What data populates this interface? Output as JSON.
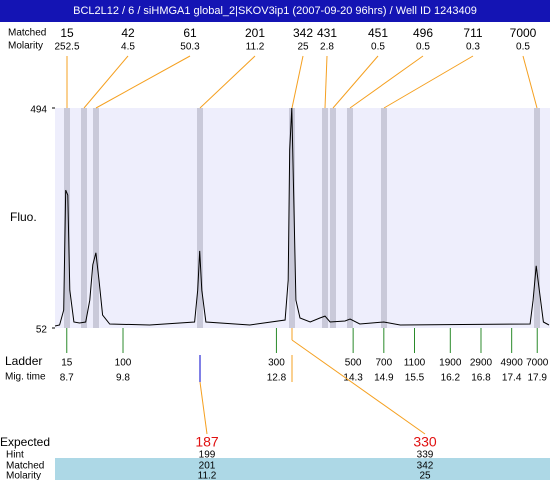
{
  "chart_data": {
    "type": "line",
    "title": "BCL2L12 / 6 / siHMGA1 global_2|SKOV3ip1 (2007-09-20 96hrs) / Well ID 1243409",
    "ylabel": "Fluo.",
    "color": "#000000",
    "xlim": [
      8.47,
      18.13
    ],
    "ylim": [
      52,
      494
    ],
    "yticks": [
      52,
      494
    ],
    "x": [
      8.47,
      8.56,
      8.64,
      8.68,
      8.72,
      8.76,
      8.84,
      8.95,
      9.07,
      9.15,
      9.21,
      9.27,
      9.33,
      9.4,
      9.54,
      10.32,
      11.2,
      11.26,
      11.3,
      11.34,
      11.42,
      12.28,
      12.97,
      13.03,
      13.06,
      13.1,
      13.14,
      13.18,
      13.26,
      13.46,
      13.65,
      13.75,
      13.85,
      14.14,
      14.24,
      14.43,
      14.9,
      15.22,
      17.76,
      17.82,
      17.88,
      17.94,
      18.02,
      18.13
    ],
    "values": [
      56,
      58,
      88,
      329,
      319,
      128,
      64,
      62,
      64,
      108,
      179,
      203,
      148,
      78,
      60,
      58,
      64,
      128,
      207,
      128,
      64,
      58,
      68,
      148,
      410,
      494,
      309,
      108,
      72,
      64,
      72,
      76,
      64,
      66,
      70,
      60,
      64,
      58,
      60,
      108,
      177,
      128,
      64,
      58
    ],
    "peaks": {
      "size_label": "Matched",
      "molarity_label": "Molarity",
      "sizes": [
        15,
        42,
        61,
        201,
        342,
        431,
        451,
        496,
        711,
        7000
      ],
      "molarity": [
        252.5,
        4.5,
        50.3,
        11.2,
        25,
        2.8,
        0.5,
        0.5,
        0.3,
        0.5
      ]
    },
    "ladder": {
      "label": "Ladder",
      "time_label": "Mig. time",
      "sizes": [
        15,
        100,
        300,
        500,
        700,
        1100,
        1900,
        2900,
        4900,
        7000
      ],
      "times": [
        8.7,
        9.8,
        12.8,
        14.3,
        14.9,
        15.5,
        16.2,
        16.8,
        17.4,
        17.9
      ]
    },
    "table": {
      "labels": [
        "Expected",
        "Hint",
        "Matched",
        "Molarity"
      ],
      "columns": [
        [
          187,
          199,
          201,
          11.2
        ],
        [
          330,
          339,
          342,
          25
        ]
      ]
    }
  }
}
